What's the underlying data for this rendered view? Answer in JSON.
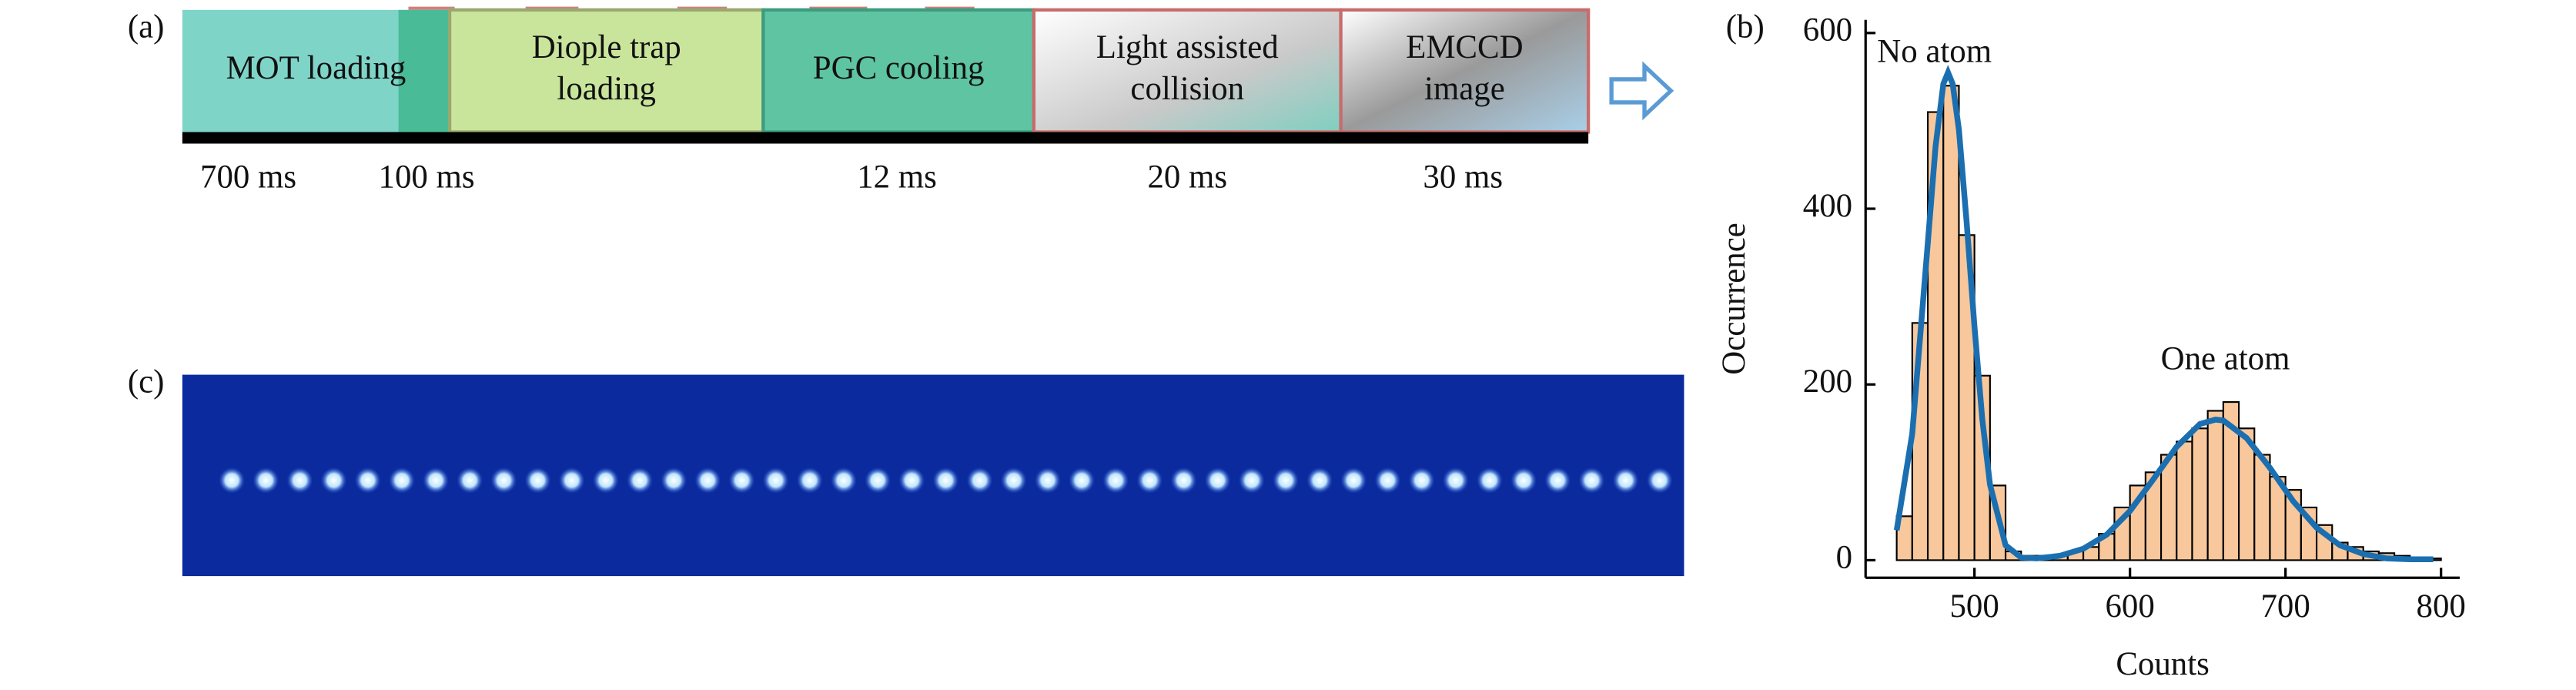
{
  "panel_labels": [
    "(a)",
    "(b)",
    "(c)"
  ],
  "timing": {
    "stages": [
      {
        "lines": [
          "MOT loading"
        ]
      },
      {
        "lines": [
          "Diople trap",
          "loading"
        ]
      },
      {
        "lines": [
          "PGC cooling"
        ]
      },
      {
        "lines": [
          "Light assisted",
          "collision"
        ]
      },
      {
        "lines": [
          "EMCCD",
          "image"
        ]
      }
    ],
    "durations": [
      "700 ms",
      "100 ms",
      "12 ms",
      "20 ms",
      "30 ms"
    ]
  },
  "chart_data": {
    "type": "histogram",
    "x_label": "Counts",
    "y_label": "Occurrence",
    "annotations": [
      "No atom",
      "One atom"
    ],
    "bins": [
      450,
      460,
      470,
      480,
      490,
      500,
      510,
      520,
      530,
      540,
      550,
      560,
      570,
      580,
      590,
      600,
      610,
      620,
      630,
      640,
      650,
      660,
      670,
      680,
      690,
      700,
      710,
      720,
      730,
      740,
      750,
      760,
      770,
      780,
      790,
      800
    ],
    "values": [
      50,
      270,
      510,
      540,
      370,
      210,
      85,
      10,
      5,
      5,
      5,
      10,
      15,
      30,
      60,
      85,
      100,
      120,
      135,
      150,
      170,
      180,
      150,
      120,
      95,
      80,
      60,
      40,
      20,
      15,
      10,
      8,
      5,
      3,
      2
    ],
    "color": "#f8c89c",
    "fit": {
      "color": "#1b6fb0",
      "x": [
        450,
        460,
        470,
        475,
        480,
        483,
        486,
        490,
        495,
        500,
        505,
        510,
        520,
        530,
        540,
        555,
        570,
        585,
        600,
        615,
        630,
        645,
        655,
        660,
        675,
        690,
        705,
        720,
        735,
        750,
        765,
        780,
        795
      ],
      "values": [
        34,
        144,
        361,
        471,
        542,
        555,
        542,
        490,
        384,
        266,
        161,
        86,
        17,
        3,
        2,
        5,
        13,
        29,
        56,
        92,
        129,
        155,
        160,
        159,
        139,
        105,
        67,
        37,
        17,
        7,
        2,
        1,
        1
      ]
    },
    "xlim": [
      430,
      812
    ],
    "ylim": [
      -20,
      615
    ],
    "xticks": [
      500,
      600,
      700,
      800
    ],
    "yticks": [
      0,
      200,
      400,
      600
    ]
  }
}
